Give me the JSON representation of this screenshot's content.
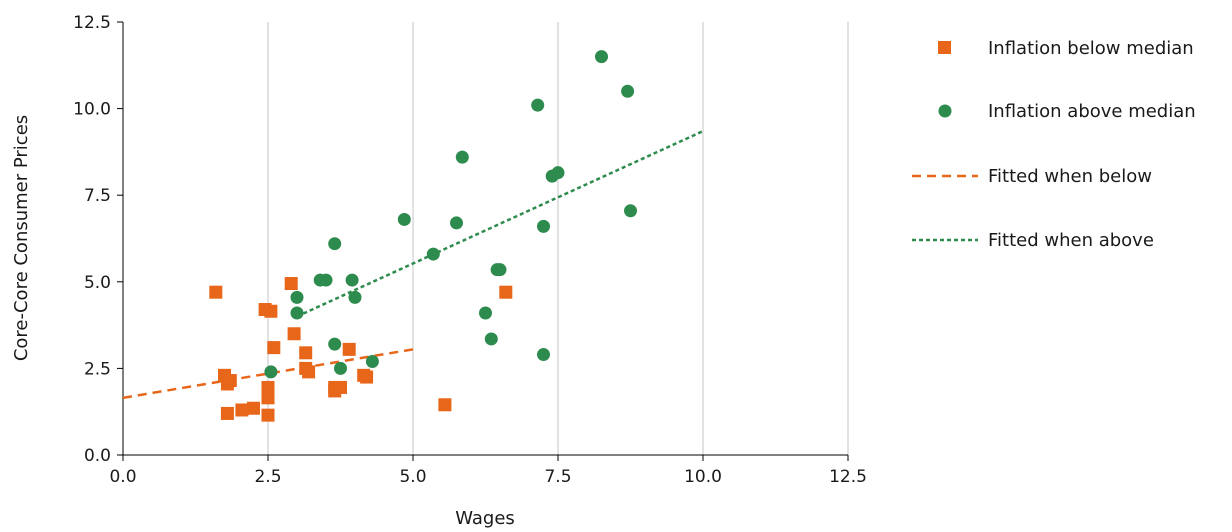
{
  "chart_data": {
    "type": "scatter",
    "title": "",
    "xlabel": "Wages",
    "ylabel": "Core-Core Consumer Prices",
    "xlim": [
      0,
      12.5
    ],
    "ylim": [
      0,
      12.5
    ],
    "xticks": [
      0,
      2.5,
      5,
      7.5,
      10,
      12.5
    ],
    "yticks": [
      0,
      2.5,
      5,
      7.5,
      10,
      12.5
    ],
    "xtick_labels": [
      "0.0",
      "2.5",
      "5.0",
      "7.5",
      "10.0",
      "12.5"
    ],
    "ytick_labels": [
      "0.0",
      "2.5",
      "5.0",
      "7.5",
      "10.0",
      "12.5"
    ],
    "grid": "vertical",
    "legend_position": "right",
    "colors": {
      "below": "#E8661A",
      "above": "#2E8B4E",
      "grid": "#d9d9d9",
      "axis": "#000000"
    },
    "series": [
      {
        "name": "Inflation below median",
        "marker": "square",
        "color": "#E8661A",
        "points": [
          [
            1.6,
            4.7
          ],
          [
            1.75,
            2.3
          ],
          [
            1.8,
            2.05
          ],
          [
            1.85,
            2.15
          ],
          [
            1.8,
            1.2
          ],
          [
            2.05,
            1.3
          ],
          [
            2.25,
            1.35
          ],
          [
            2.5,
            1.15
          ],
          [
            2.5,
            1.65
          ],
          [
            2.5,
            1.8
          ],
          [
            2.5,
            1.95
          ],
          [
            2.45,
            4.2
          ],
          [
            2.55,
            4.15
          ],
          [
            2.6,
            3.1
          ],
          [
            2.9,
            4.95
          ],
          [
            2.95,
            3.5
          ],
          [
            3.15,
            2.95
          ],
          [
            3.15,
            2.5
          ],
          [
            3.2,
            2.4
          ],
          [
            3.65,
            1.85
          ],
          [
            3.65,
            1.95
          ],
          [
            3.75,
            1.95
          ],
          [
            3.9,
            3.05
          ],
          [
            4.15,
            2.3
          ],
          [
            4.2,
            2.25
          ],
          [
            5.55,
            1.45
          ],
          [
            6.6,
            4.7
          ]
        ]
      },
      {
        "name": "Inflation above median",
        "marker": "circle",
        "color": "#2E8B4E",
        "points": [
          [
            2.55,
            2.4
          ],
          [
            3.0,
            4.55
          ],
          [
            3.0,
            4.1
          ],
          [
            3.4,
            5.05
          ],
          [
            3.5,
            5.05
          ],
          [
            3.65,
            6.1
          ],
          [
            3.65,
            3.2
          ],
          [
            3.75,
            2.5
          ],
          [
            3.95,
            5.05
          ],
          [
            4.0,
            4.55
          ],
          [
            4.3,
            2.7
          ],
          [
            4.85,
            6.8
          ],
          [
            5.35,
            5.8
          ],
          [
            5.75,
            6.7
          ],
          [
            5.85,
            8.6
          ],
          [
            6.25,
            4.1
          ],
          [
            6.35,
            3.35
          ],
          [
            6.45,
            5.35
          ],
          [
            6.5,
            5.35
          ],
          [
            7.15,
            10.1
          ],
          [
            7.25,
            2.9
          ],
          [
            7.25,
            6.6
          ],
          [
            7.4,
            8.05
          ],
          [
            7.5,
            8.15
          ],
          [
            8.25,
            11.5
          ],
          [
            8.7,
            10.5
          ],
          [
            8.75,
            7.05
          ]
        ]
      },
      {
        "name": "Fitted when below",
        "type": "line",
        "dash": "long",
        "color": "#E8661A",
        "points": [
          [
            0,
            1.65
          ],
          [
            5.0,
            3.05
          ]
        ]
      },
      {
        "name": "Fitted when above",
        "type": "line",
        "dash": "short",
        "color": "#2E8B4E",
        "points": [
          [
            3.0,
            4.0
          ],
          [
            10.0,
            9.35
          ]
        ]
      }
    ]
  }
}
